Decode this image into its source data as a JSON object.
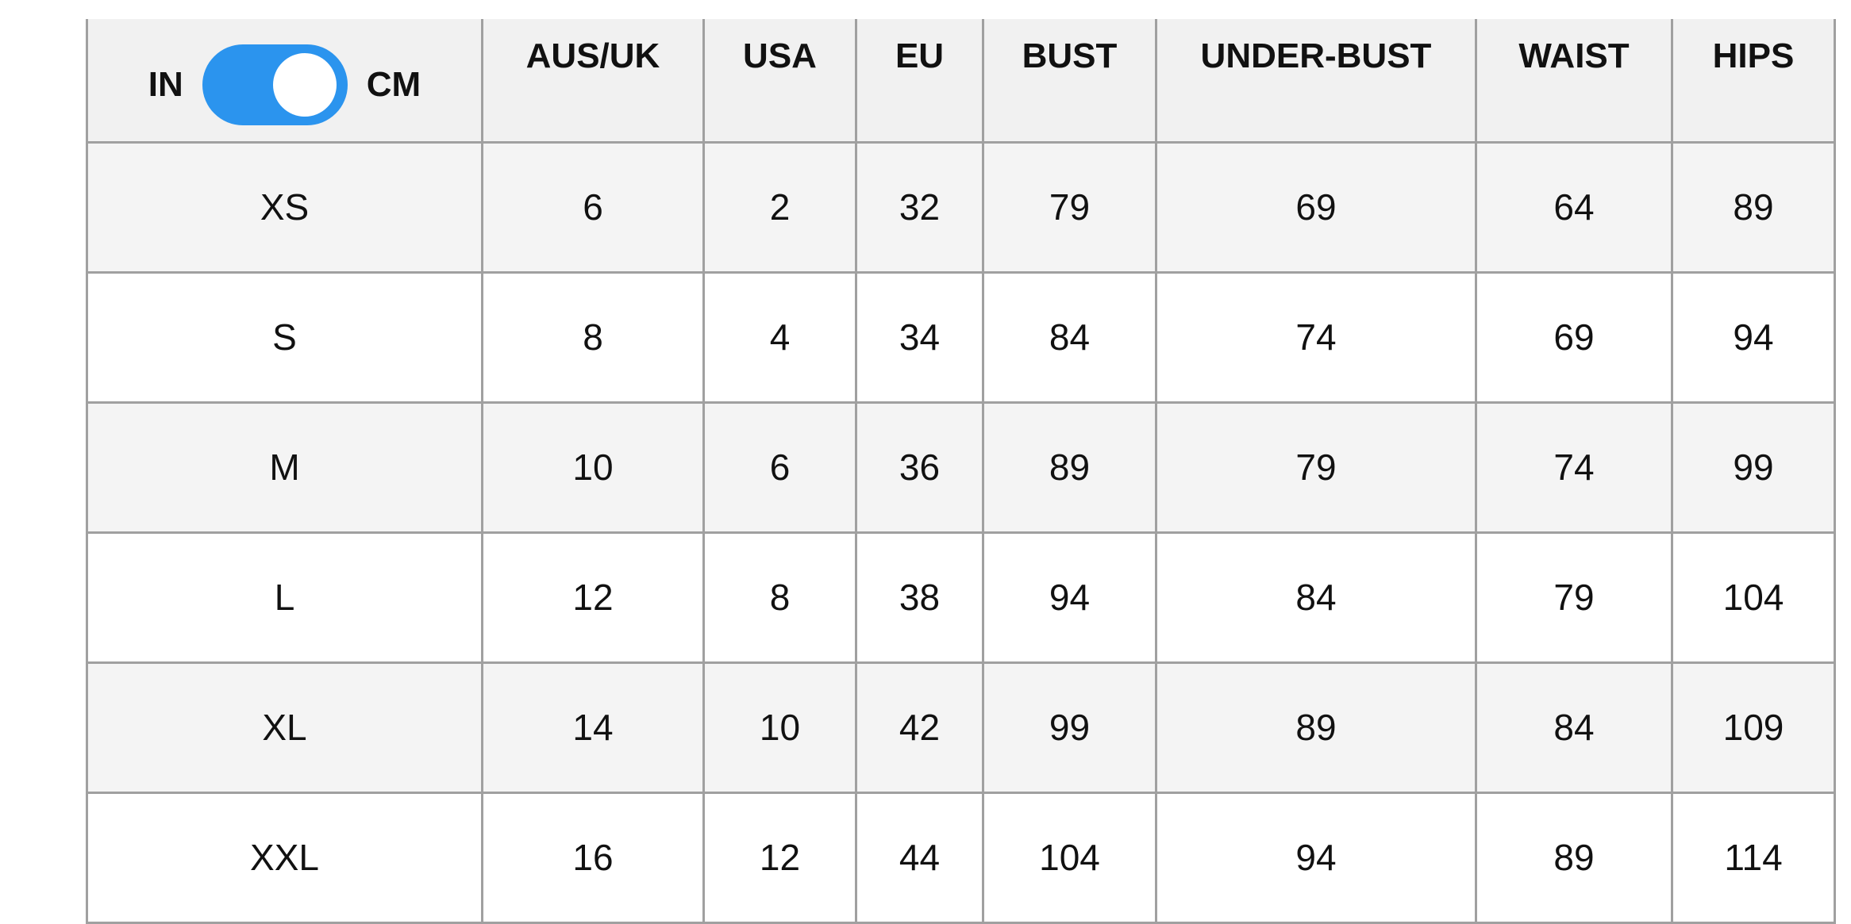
{
  "unit_toggle": {
    "left_label": "IN",
    "right_label": "CM",
    "selected": "CM",
    "accent_color": "#2b94ee"
  },
  "headers": [
    "AUS/UK",
    "USA",
    "EU",
    "BUST",
    "UNDER-BUST",
    "WAIST",
    "HIPS"
  ],
  "rows": [
    [
      "XS",
      "6",
      "2",
      "32",
      "79",
      "69",
      "64",
      "89"
    ],
    [
      "S",
      "8",
      "4",
      "34",
      "84",
      "74",
      "69",
      "94"
    ],
    [
      "M",
      "10",
      "6",
      "36",
      "89",
      "79",
      "74",
      "99"
    ],
    [
      "L",
      "12",
      "8",
      "38",
      "94",
      "84",
      "79",
      "104"
    ],
    [
      "XL",
      "14",
      "10",
      "42",
      "99",
      "89",
      "84",
      "109"
    ],
    [
      "XXL",
      "16",
      "12",
      "44",
      "104",
      "94",
      "89",
      "114"
    ]
  ]
}
